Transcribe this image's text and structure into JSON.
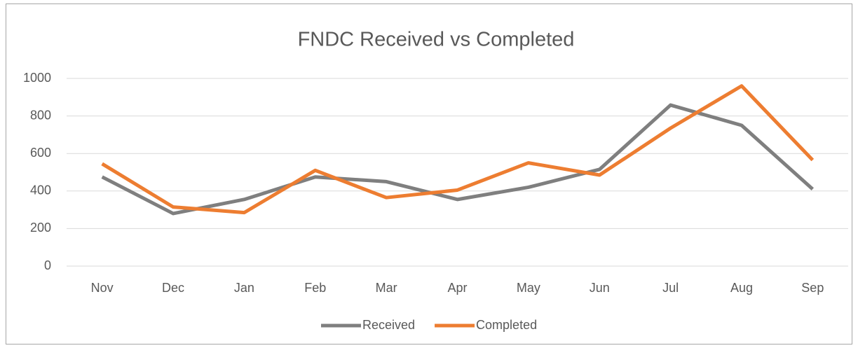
{
  "chart_data": {
    "type": "line",
    "title": "FNDC Received vs Completed",
    "categories": [
      "Nov",
      "Dec",
      "Jan",
      "Feb",
      "Mar",
      "Apr",
      "May",
      "Jun",
      "Jul",
      "Aug",
      "Sep"
    ],
    "series": [
      {
        "name": "Received",
        "color": "#7f7f7f",
        "values": [
          475,
          280,
          355,
          475,
          450,
          355,
          420,
          515,
          858,
          750,
          410
        ]
      },
      {
        "name": "Completed",
        "color": "#ed7d31",
        "values": [
          545,
          315,
          285,
          510,
          365,
          405,
          550,
          485,
          735,
          960,
          565
        ]
      }
    ],
    "ylim": [
      0,
      1000
    ],
    "yticks": [
      0,
      200,
      400,
      600,
      800,
      1000
    ],
    "grid": true,
    "legend": "bottom"
  }
}
